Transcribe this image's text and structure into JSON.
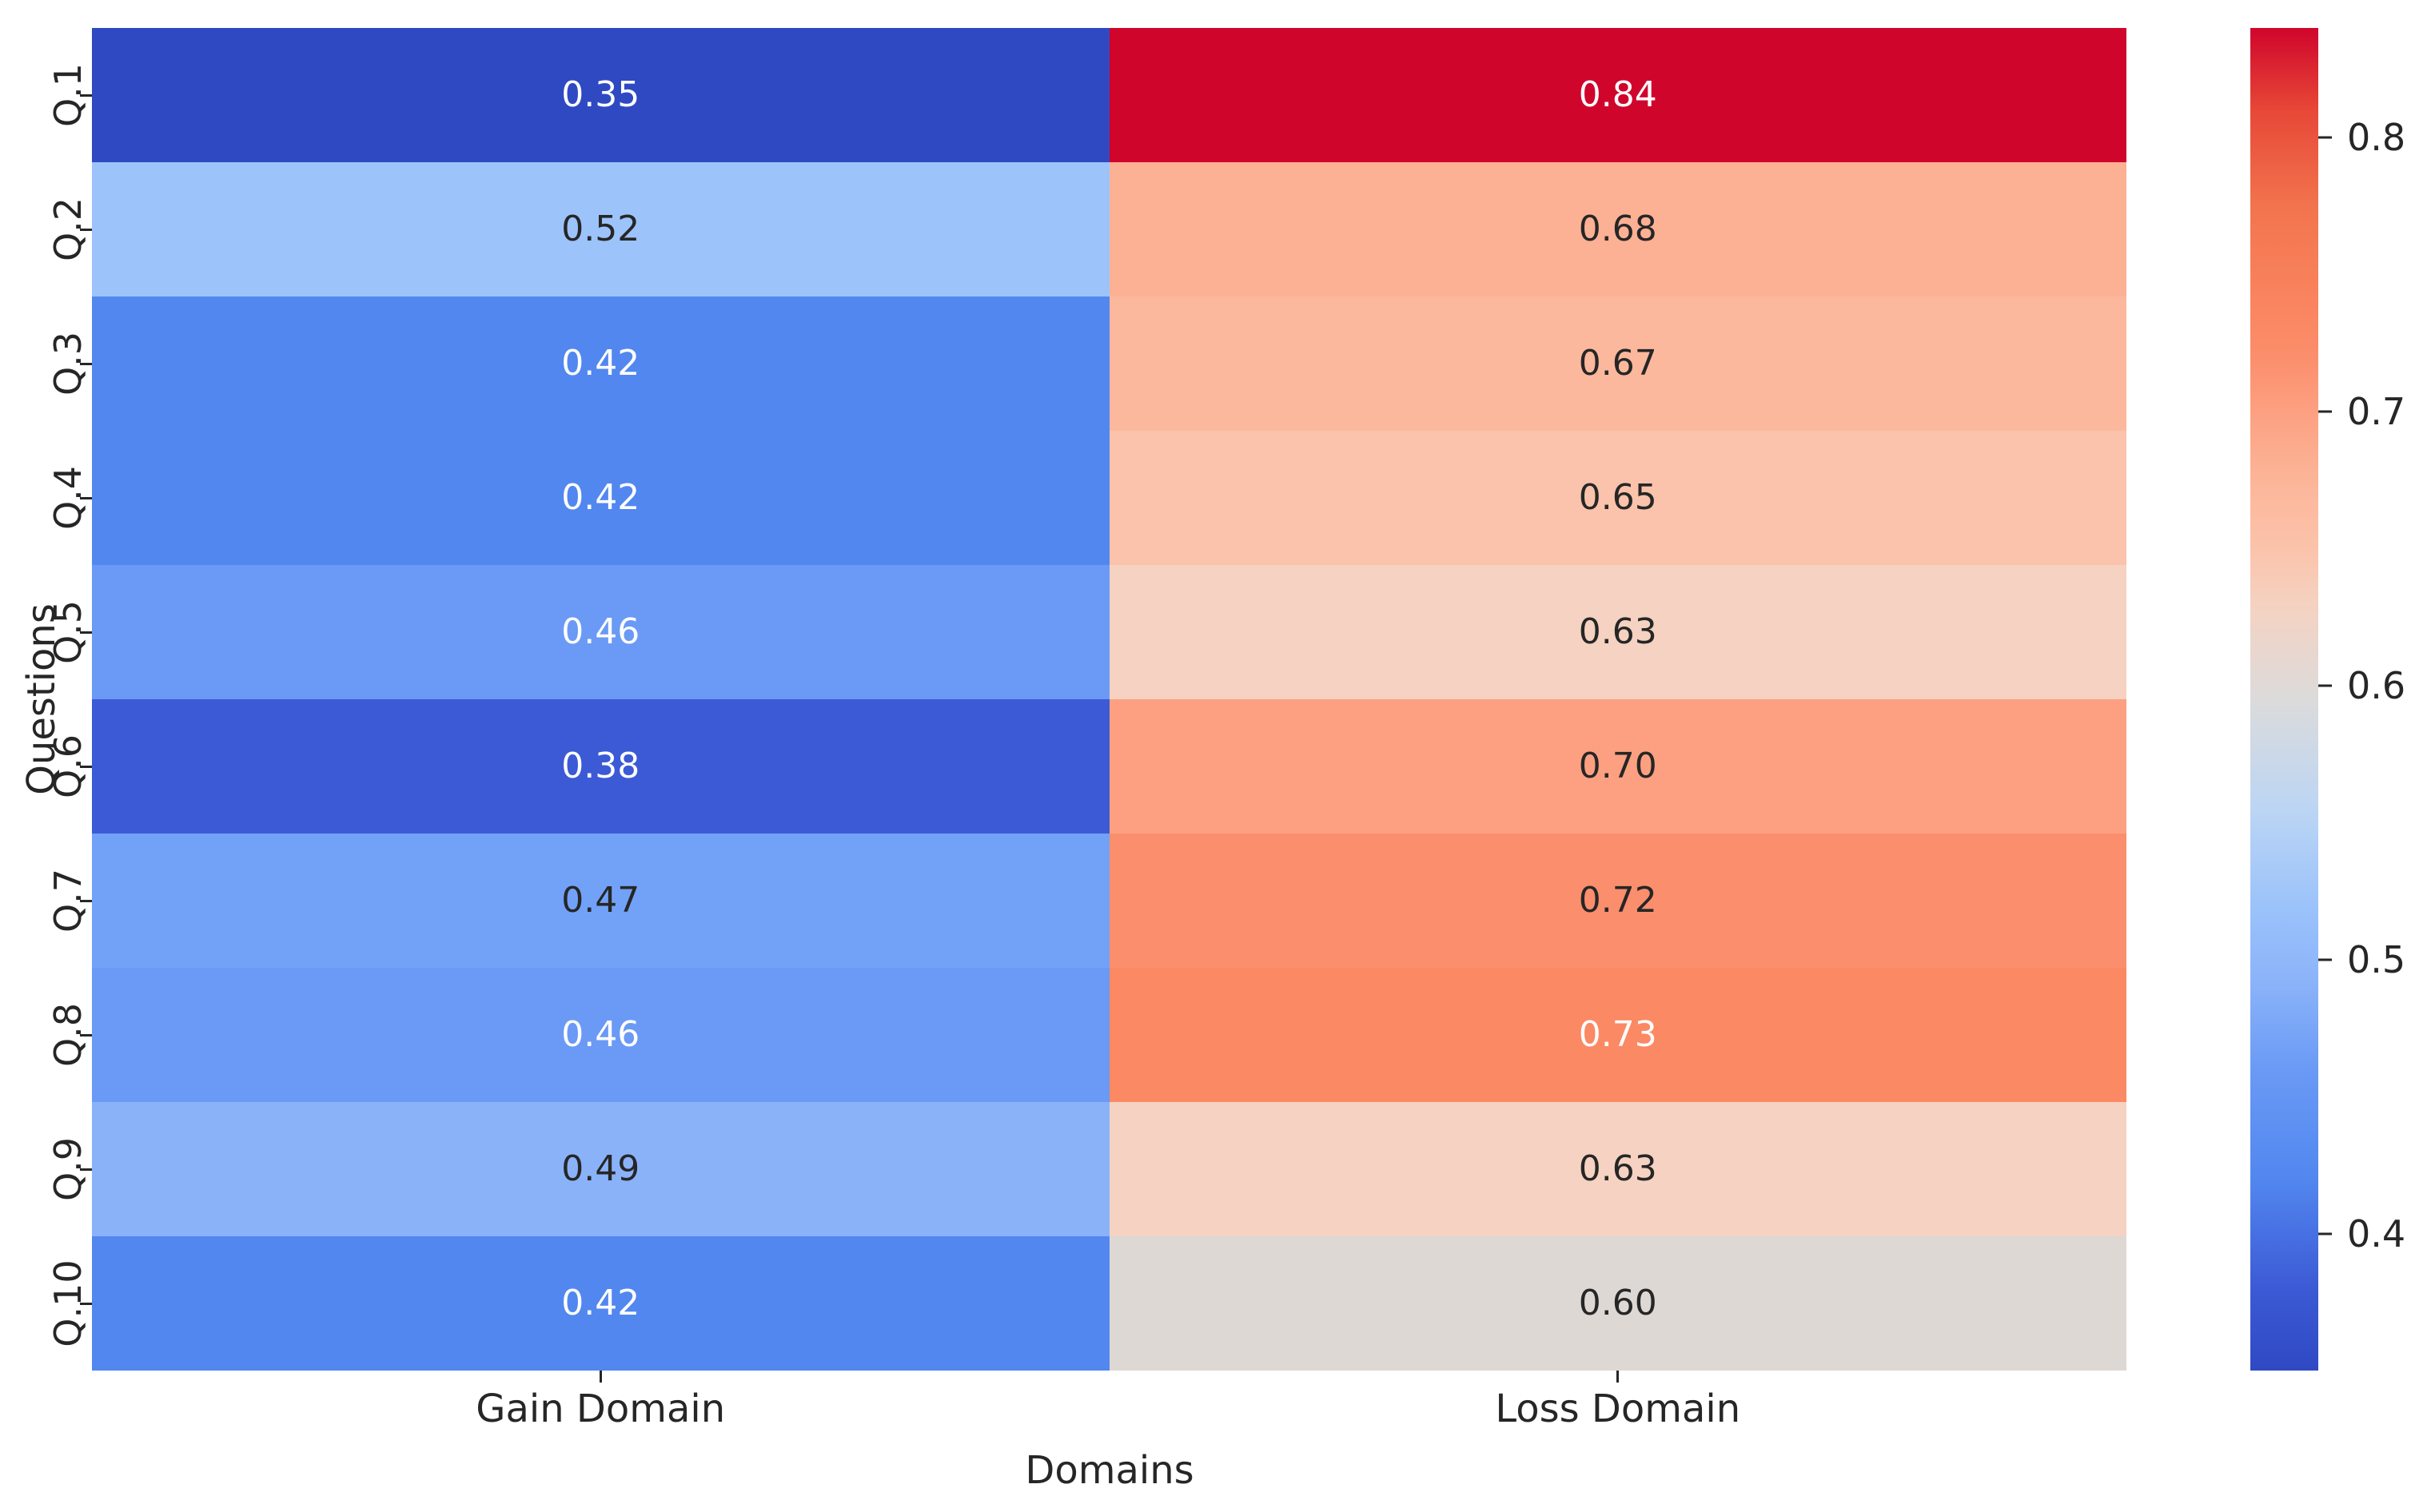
{
  "chart_data": {
    "type": "heatmap",
    "title": "",
    "xlabel": "Domains",
    "ylabel": "Questions",
    "columns": [
      "Gain Domain",
      "Loss Domain"
    ],
    "rows": [
      "Q.1",
      "Q.2",
      "Q.3",
      "Q.4",
      "Q.5",
      "Q.6",
      "Q.7",
      "Q.8",
      "Q.9",
      "Q.10"
    ],
    "series": [
      {
        "name": "Gain Domain",
        "values": [
          0.35,
          0.52,
          0.42,
          0.42,
          0.46,
          0.38,
          0.47,
          0.46,
          0.49,
          0.42
        ]
      },
      {
        "name": "Loss Domain",
        "values": [
          0.84,
          0.68,
          0.67,
          0.65,
          0.63,
          0.7,
          0.72,
          0.73,
          0.63,
          0.6
        ]
      }
    ],
    "vmin": 0.35,
    "vmax": 0.84,
    "colormap": "coolwarm",
    "annotation_format": "two-decimals",
    "colorbar_ticks": [
      0.8,
      0.7,
      0.6,
      0.5,
      0.4
    ],
    "legend_position": "right-colorbar",
    "grid": false
  },
  "style": {
    "background": "#ffffff",
    "annotation_dark": "#262626",
    "annotation_light": "#ffffff",
    "cell_colors": {
      "gain": [
        "#2f49c3",
        "#9cc3fa",
        "#5287ef",
        "#5287ef",
        "#6a9af5",
        "#3c5ad5",
        "#71a2f7",
        "#6a9af5",
        "#8ab2f9",
        "#5287ef"
      ],
      "loss": [
        "#d0052c",
        "#fcb194",
        "#fcb89d",
        "#fbc3ab",
        "#f5d2c1",
        "#fca081",
        "#fb8e6c",
        "#fb8964",
        "#f5d2c1",
        "#ded8d4"
      ]
    },
    "cell_text_tone": {
      "gain": [
        "light",
        "dark",
        "light",
        "light",
        "light",
        "light",
        "dark",
        "light",
        "dark",
        "light"
      ],
      "loss": [
        "light",
        "dark",
        "dark",
        "dark",
        "dark",
        "dark",
        "dark",
        "light",
        "dark",
        "dark"
      ]
    },
    "colorbar_gradient": [
      {
        "v": 0.35,
        "c": "#2f49c3"
      },
      {
        "v": 0.38,
        "c": "#3c5ad5"
      },
      {
        "v": 0.42,
        "c": "#5287ef"
      },
      {
        "v": 0.46,
        "c": "#6a9af5"
      },
      {
        "v": 0.49,
        "c": "#8ab2f9"
      },
      {
        "v": 0.52,
        "c": "#9cc3fa"
      },
      {
        "v": 0.555,
        "c": "#bcd5f4"
      },
      {
        "v": 0.595,
        "c": "#dcdbdb"
      },
      {
        "v": 0.63,
        "c": "#f5d2c1"
      },
      {
        "v": 0.65,
        "c": "#fbc3ab"
      },
      {
        "v": 0.67,
        "c": "#fcb89d"
      },
      {
        "v": 0.68,
        "c": "#fcb194"
      },
      {
        "v": 0.7,
        "c": "#fca081"
      },
      {
        "v": 0.72,
        "c": "#fb8e6c"
      },
      {
        "v": 0.73,
        "c": "#fb8964"
      },
      {
        "v": 0.775,
        "c": "#f2744e"
      },
      {
        "v": 0.81,
        "c": "#e74737"
      },
      {
        "v": 0.84,
        "c": "#d0052c"
      }
    ]
  }
}
